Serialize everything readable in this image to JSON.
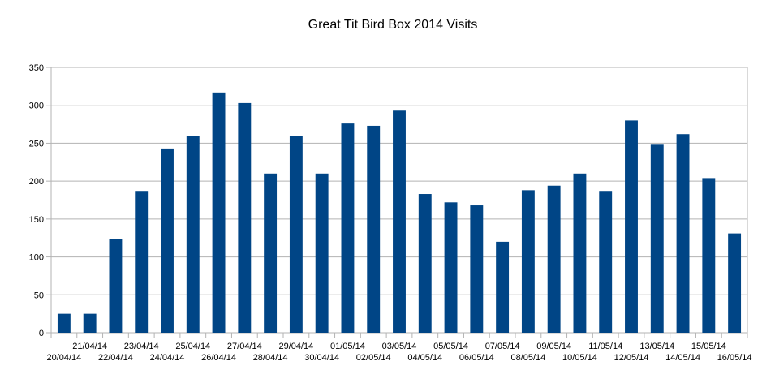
{
  "chart_data": {
    "type": "bar",
    "title": "Great Tit Bird Box 2014 Visits",
    "xlabel": "",
    "ylabel": "",
    "ylim": [
      0,
      350
    ],
    "yticks": [
      0,
      50,
      100,
      150,
      200,
      250,
      300,
      350
    ],
    "grid": true,
    "legend": "none",
    "bar_color": "#004586",
    "categories": [
      "20/04/14",
      "21/04/14",
      "22/04/14",
      "23/04/14",
      "24/04/14",
      "25/04/14",
      "26/04/14",
      "27/04/14",
      "28/04/14",
      "29/04/14",
      "30/04/14",
      "01/05/14",
      "02/05/14",
      "03/05/14",
      "04/05/14",
      "05/05/14",
      "06/05/14",
      "07/05/14",
      "08/05/14",
      "09/05/14",
      "10/05/14",
      "11/05/14",
      "12/05/14",
      "13/05/14",
      "14/05/14",
      "15/05/14",
      "16/05/14"
    ],
    "values": [
      25,
      25,
      124,
      186,
      242,
      260,
      317,
      303,
      210,
      260,
      210,
      276,
      273,
      293,
      183,
      172,
      168,
      120,
      188,
      194,
      210,
      186,
      280,
      248,
      262,
      204,
      131
    ]
  }
}
